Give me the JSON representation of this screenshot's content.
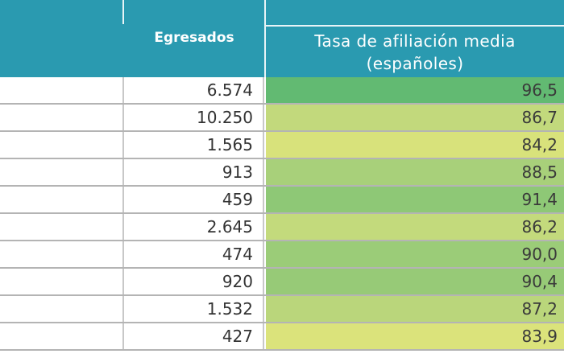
{
  "table": {
    "header": {
      "egresados": "Egresados",
      "tasa_line1": "Tasa de afiliación media",
      "tasa_line2": "(españoles)",
      "background": "#2a9ab0"
    },
    "rows": [
      {
        "egresados": "6.574",
        "tasa": "96,5",
        "color": "#62ba72"
      },
      {
        "egresados": "10.250",
        "tasa": "86,7",
        "color": "#c2d97c"
      },
      {
        "egresados": "1.565",
        "tasa": "84,2",
        "color": "#d8e27b"
      },
      {
        "egresados": "913",
        "tasa": "88,5",
        "color": "#a8d07a"
      },
      {
        "egresados": "459",
        "tasa": "91,4",
        "color": "#8ec876"
      },
      {
        "egresados": "2.645",
        "tasa": "86,2",
        "color": "#c3da7c"
      },
      {
        "egresados": "474",
        "tasa": "90,0",
        "color": "#9bcc78"
      },
      {
        "egresados": "920",
        "tasa": "90,4",
        "color": "#97ca77"
      },
      {
        "egresados": "1.532",
        "tasa": "87,2",
        "color": "#bad67b"
      },
      {
        "egresados": "427",
        "tasa": "83,9",
        "color": "#dbe37b"
      }
    ]
  }
}
